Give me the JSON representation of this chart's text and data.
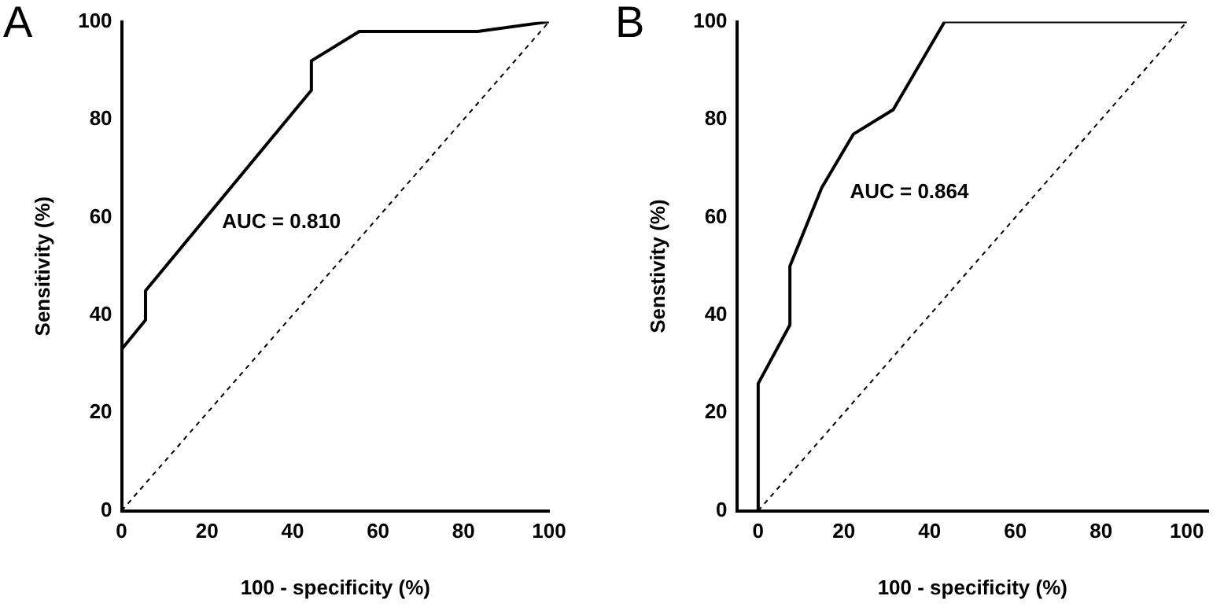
{
  "chart_data": [
    {
      "type": "line",
      "title": "A",
      "xlabel": "100 - specificity (%)",
      "ylabel": "Sensitivity (%)",
      "xlim": [
        0,
        100
      ],
      "ylim": [
        0,
        100
      ],
      "xticks": [
        0,
        20,
        40,
        60,
        80,
        100
      ],
      "yticks": [
        0,
        20,
        40,
        60,
        80,
        100
      ],
      "grid": false,
      "legend": false,
      "marker": "none",
      "annotations": [
        "AUC = 0.810"
      ],
      "series": [
        {
          "color": "#000000",
          "line_style": "solid",
          "x": [
            0,
            0,
            5.6,
            5.6,
            44.4,
            44.4,
            55.6,
            83.3,
            100
          ],
          "values": [
            0,
            33,
            39,
            45,
            86,
            92,
            98,
            98,
            100
          ]
        },
        {
          "color": "#000000",
          "line_style": "dashed",
          "x": [
            0,
            100
          ],
          "values": [
            0,
            100
          ]
        }
      ]
    },
    {
      "type": "line",
      "title": "B",
      "xlabel": "100 - specificity (%)",
      "ylabel": "Senstivity (%)",
      "xlim": [
        -5,
        105
      ],
      "ylim": [
        0,
        100
      ],
      "xticks": [
        0,
        20,
        40,
        60,
        80,
        100
      ],
      "yticks": [
        0,
        20,
        40,
        60,
        80,
        100
      ],
      "grid": false,
      "legend": false,
      "marker": "none",
      "annotations": [
        "AUC = 0.864"
      ],
      "series": [
        {
          "color": "#000000",
          "line_style": "solid",
          "x": [
            0,
            0,
            7.4,
            7.4,
            14.8,
            22.2,
            31.5,
            43.5,
            100
          ],
          "values": [
            0,
            26,
            38,
            50,
            66,
            77,
            82,
            100,
            100
          ]
        },
        {
          "color": "#000000",
          "line_style": "dashed",
          "x": [
            0,
            100
          ],
          "values": [
            0,
            100
          ]
        }
      ]
    }
  ]
}
